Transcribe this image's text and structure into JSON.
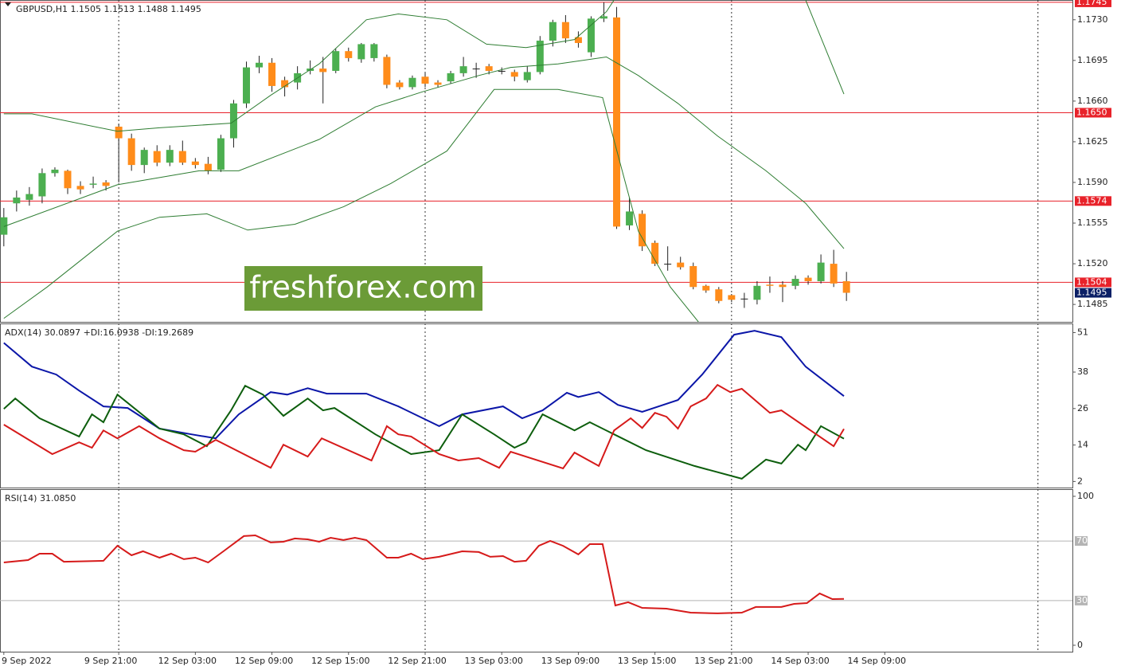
{
  "watermark": "freshforex.com",
  "chart_data": [
    {
      "type": "candlestick",
      "title": "GBPUSD,H1  1.1505 1.1513 1.1488 1.1495",
      "xlim": [
        -0.3,
        83.7
      ],
      "ylim": [
        1.147,
        1.1747
      ],
      "xticks": [
        {
          "value": 0,
          "label": "9 Sep 2022"
        },
        {
          "value": 9,
          "label": "9 Sep 21:00"
        },
        {
          "value": 15,
          "label": "12 Sep 03:00"
        },
        {
          "value": 21,
          "label": "12 Sep 09:00"
        },
        {
          "value": 27,
          "label": "12 Sep 15:00"
        },
        {
          "value": 33,
          "label": "12 Sep 21:00"
        },
        {
          "value": 39,
          "label": "13 Sep 03:00"
        },
        {
          "value": 45,
          "label": "13 Sep 09:00"
        },
        {
          "value": 51,
          "label": "13 Sep 15:00"
        },
        {
          "value": 57,
          "label": "13 Sep 21:00"
        },
        {
          "value": 63,
          "label": "14 Sep 03:00"
        },
        {
          "value": 69,
          "label": "14 Sep 09:00"
        }
      ],
      "xgrid": [
        9,
        33,
        57,
        81
      ],
      "yticks": [
        {
          "value": 1.1485,
          "label": "1.1485"
        },
        {
          "value": 1.152,
          "label": "1.1520"
        },
        {
          "value": 1.1555,
          "label": "1.1555"
        },
        {
          "value": 1.159,
          "label": "1.1590"
        },
        {
          "value": 1.1625,
          "label": "1.1625"
        },
        {
          "value": 1.166,
          "label": "1.1660"
        },
        {
          "value": 1.1695,
          "label": "1.1695"
        },
        {
          "value": 1.173,
          "label": "1.1730"
        }
      ],
      "up_color": "#4caf50",
      "down_color": "#ff8c1a",
      "open": [
        1.1545,
        1.1572,
        1.1575,
        1.1578,
        1.1598,
        1.16,
        1.1587,
        1.1588,
        1.159,
        1.1638,
        1.1628,
        1.1605,
        1.1617,
        1.1607,
        1.1617,
        1.1608,
        1.1606,
        1.1601,
        1.1628,
        1.1658,
        1.1689,
        1.1693,
        1.1678,
        1.1676,
        1.1686,
        1.1688,
        1.1686,
        1.1703,
        1.1696,
        1.1697,
        1.1698,
        1.1676,
        1.1672,
        1.1681,
        1.1676,
        1.1677,
        1.1684,
        1.1688,
        1.169,
        1.1686,
        1.1685,
        1.1678,
        1.1685,
        1.1712,
        1.1728,
        1.1715,
        1.1702,
        1.1731,
        1.1732,
        1.1553,
        1.1563,
        1.1538,
        1.152,
        1.1521,
        1.1518,
        1.1501,
        1.1498,
        1.1493,
        1.149,
        1.1489,
        1.1502,
        1.1502,
        1.1501,
        1.1508,
        1.1505,
        1.152,
        1.1505
      ],
      "high": [
        1.1568,
        1.1583,
        1.1586,
        1.1602,
        1.1603,
        1.1601,
        1.1591,
        1.1595,
        1.1592,
        1.164,
        1.1632,
        1.162,
        1.1622,
        1.1622,
        1.1626,
        1.1611,
        1.1612,
        1.1631,
        1.1661,
        1.1694,
        1.1699,
        1.1697,
        1.1681,
        1.169,
        1.1695,
        1.1698,
        1.1705,
        1.1706,
        1.171,
        1.171,
        1.17,
        1.1678,
        1.1682,
        1.1684,
        1.1678,
        1.1686,
        1.1698,
        1.1693,
        1.1692,
        1.1689,
        1.1687,
        1.169,
        1.1716,
        1.173,
        1.1734,
        1.172,
        1.1733,
        1.1745,
        1.1741,
        1.1577,
        1.1566,
        1.154,
        1.1535,
        1.1526,
        1.1521,
        1.1502,
        1.15,
        1.1494,
        1.1495,
        1.1505,
        1.1509,
        1.1505,
        1.151,
        1.151,
        1.1528,
        1.1532,
        1.1513
      ],
      "low": [
        1.1535,
        1.1565,
        1.157,
        1.1572,
        1.1595,
        1.158,
        1.158,
        1.1585,
        1.1583,
        1.159,
        1.16,
        1.1598,
        1.1604,
        1.1604,
        1.1605,
        1.1602,
        1.1597,
        1.1599,
        1.162,
        1.1654,
        1.1684,
        1.1668,
        1.1664,
        1.167,
        1.1683,
        1.1658,
        1.1684,
        1.1694,
        1.1693,
        1.1694,
        1.1671,
        1.167,
        1.167,
        1.1672,
        1.1672,
        1.1675,
        1.1681,
        1.168,
        1.1683,
        1.1683,
        1.1677,
        1.1676,
        1.1683,
        1.1707,
        1.171,
        1.1706,
        1.1698,
        1.1728,
        1.155,
        1.1549,
        1.1531,
        1.1518,
        1.1514,
        1.1515,
        1.1498,
        1.1495,
        1.1486,
        1.1487,
        1.1482,
        1.1485,
        1.1495,
        1.1487,
        1.1498,
        1.1502,
        1.1503,
        1.15,
        1.1488
      ],
      "close": [
        1.156,
        1.1577,
        1.158,
        1.1598,
        1.1601,
        1.1585,
        1.1584,
        1.1589,
        1.1587,
        1.1628,
        1.1605,
        1.1618,
        1.1607,
        1.1618,
        1.1607,
        1.1605,
        1.16,
        1.1628,
        1.1658,
        1.1689,
        1.1693,
        1.1673,
        1.1672,
        1.1684,
        1.1688,
        1.1685,
        1.1703,
        1.1697,
        1.1709,
        1.1709,
        1.1674,
        1.1672,
        1.168,
        1.1675,
        1.1674,
        1.1684,
        1.169,
        1.1688,
        1.1686,
        1.1686,
        1.1681,
        1.1685,
        1.1712,
        1.1728,
        1.1714,
        1.171,
        1.1731,
        1.1733,
        1.1552,
        1.1565,
        1.1535,
        1.152,
        1.152,
        1.1517,
        1.15,
        1.1497,
        1.1488,
        1.1489,
        1.149,
        1.1501,
        1.1501,
        1.15,
        1.1507,
        1.1505,
        1.1521,
        1.1503,
        1.1495
      ],
      "series": [
        {
          "color": "#2e7d32",
          "x": [
            0,
            2.2,
            8.9,
            12.2,
            17.8,
            20.9,
            24.7,
            28.4,
            30.9,
            34.7,
            37.8,
            40.9,
            44.7,
            47.2,
            47.8,
            55,
            62.8,
            65.8
          ],
          "values": [
            1.1649,
            1.1649,
            1.1634,
            1.1637,
            1.1641,
            1.1665,
            1.1692,
            1.173,
            1.1735,
            1.173,
            1.1709,
            1.1706,
            1.1713,
            1.1737,
            1.1747,
            null,
            1.1747,
            1.1666
          ]
        },
        {
          "color": "#2e7d32",
          "x": [
            0,
            8.9,
            15.3,
            18.4,
            24.7,
            29.1,
            32.8,
            37.2,
            39.7,
            43.4,
            47.2,
            49.7,
            52.8,
            55.9,
            59.7,
            62.8,
            65.8
          ],
          "values": [
            1.1552,
            1.1588,
            1.16,
            1.16,
            1.1627,
            1.1655,
            1.1668,
            1.1682,
            1.1689,
            1.1692,
            1.1698,
            1.1682,
            1.1658,
            1.163,
            1.16,
            1.1572,
            1.1533
          ]
        },
        {
          "color": "#2e7d32",
          "x": [
            0,
            3.4,
            8.9,
            12.2,
            15.9,
            19.1,
            22.8,
            26.6,
            30.3,
            34.7,
            38.4,
            43.4,
            46.9,
            49.7,
            52.2,
            54.4
          ],
          "values": [
            1.1473,
            1.15,
            1.1548,
            1.156,
            1.1563,
            1.1549,
            1.1554,
            1.1569,
            1.1589,
            1.1617,
            1.167,
            1.167,
            1.1663,
            1.1548,
            1.15,
            1.147
          ]
        }
      ],
      "levels": [
        {
          "value": 1.1745,
          "label": "1.1745"
        },
        {
          "value": 1.165,
          "label": "1.1650"
        },
        {
          "value": 1.1574,
          "label": "1.1574"
        },
        {
          "value": 1.1504,
          "label": "1.1504"
        }
      ],
      "level_color": "#e8222a",
      "last_price": 1.1495,
      "last_price_color": "#0a1f66"
    },
    {
      "type": "line",
      "title": "ADX(14) 30.0897 +DI:16.0938 -DI:19.2689",
      "xlim": [
        -0.3,
        83.7
      ],
      "ylim": [
        0,
        54
      ],
      "yticks": [
        2,
        14,
        26,
        38,
        51
      ],
      "series": [
        {
          "color": "#0b16a8",
          "x": [
            0,
            2.2,
            4.1,
            5.9,
            7.8,
            9.7,
            12.2,
            14.7,
            16.6,
            18.4,
            20.9,
            22.2,
            23.8,
            25.3,
            28.4,
            30.9,
            34.1,
            35.9,
            39.1,
            40.6,
            42.2,
            44.1,
            45.0,
            46.6,
            48.1,
            50.0,
            52.8,
            54.7,
            57.2,
            58.8,
            60.9,
            62.8,
            65.8
          ],
          "values": [
            47.6,
            39.8,
            37.2,
            31.9,
            26.7,
            26.2,
            19.4,
            17.5,
            16.2,
            24.1,
            31.4,
            30.6,
            32.7,
            30.9,
            30.9,
            26.7,
            20.2,
            24.1,
            26.7,
            22.8,
            25.4,
            31.2,
            29.8,
            31.4,
            27.2,
            24.9,
            28.8,
            37.2,
            50.3,
            51.6,
            49.5,
            39.8,
            30.1
          ]
        },
        {
          "color": "#0d5e0d",
          "x": [
            0,
            0.9,
            2.8,
            5.9,
            6.9,
            7.8,
            8.9,
            12.2,
            14.1,
            15.9,
            17.8,
            18.9,
            20.3,
            21.9,
            23.8,
            25.0,
            25.9,
            29.1,
            31.9,
            34.1,
            35.9,
            38.4,
            40.0,
            40.9,
            42.2,
            44.7,
            45.9,
            47.8,
            50.3,
            54.1,
            57.8,
            59.7,
            60.9,
            62.2,
            62.8,
            64.0,
            65.8
          ],
          "values": [
            25.9,
            29.3,
            22.8,
            16.8,
            24.1,
            21.5,
            30.6,
            19.4,
            17.5,
            13.6,
            25.4,
            33.5,
            30.6,
            23.6,
            29.3,
            25.4,
            26.2,
            17.5,
            11.0,
            12.3,
            24.1,
            17.5,
            13.1,
            14.9,
            24.1,
            18.8,
            21.5,
            17.5,
            12.3,
            7.1,
            2.9,
            9.2,
            7.9,
            14.1,
            12.3,
            20.2,
            16.1
          ]
        },
        {
          "color": "#d61a1a",
          "x": [
            0,
            3.8,
            5.9,
            6.9,
            7.8,
            8.9,
            10.6,
            12.2,
            14.1,
            15.0,
            16.6,
            20.9,
            21.9,
            23.8,
            24.9,
            28.8,
            30.0,
            30.9,
            31.9,
            34.1,
            35.6,
            37.2,
            38.8,
            39.7,
            43.8,
            44.7,
            46.6,
            47.8,
            49.1,
            50.0,
            51.0,
            51.9,
            52.8,
            53.8,
            55.0,
            55.9,
            56.9,
            57.8,
            60.0,
            60.9,
            65.0,
            65.8
          ],
          "values": [
            20.7,
            11.0,
            14.9,
            13.1,
            18.8,
            16.2,
            20.2,
            16.2,
            12.3,
            11.8,
            15.7,
            6.5,
            14.1,
            10.2,
            16.2,
            8.9,
            20.2,
            17.5,
            16.8,
            11.0,
            8.9,
            9.7,
            6.5,
            11.8,
            6.3,
            11.5,
            7.1,
            18.8,
            22.8,
            19.6,
            24.6,
            23.3,
            19.4,
            26.7,
            29.3,
            33.8,
            31.4,
            32.5,
            24.6,
            25.4,
            13.6,
            19.3
          ]
        }
      ]
    },
    {
      "type": "line",
      "title": "RSI(14) 31.0850",
      "xlim": [
        -0.3,
        83.7
      ],
      "ylim": [
        -4.3,
        104.8
      ],
      "yticks": [
        0,
        100
      ],
      "levels": [
        30,
        70
      ],
      "level_color": "#b4b4b4",
      "series": [
        {
          "color": "#d61a1a",
          "x": [
            0,
            1.9,
            2.8,
            3.8,
            4.7,
            7.8,
            8.9,
            10.0,
            10.9,
            12.2,
            13.1,
            14.1,
            15.0,
            16.0,
            17.2,
            18.8,
            19.7,
            20.9,
            21.9,
            22.8,
            23.8,
            24.7,
            25.6,
            26.6,
            27.5,
            28.4,
            30.0,
            30.9,
            31.9,
            32.8,
            34.1,
            35.9,
            37.2,
            38.1,
            39.1,
            40.0,
            40.9,
            41.9,
            42.8,
            43.8,
            45.0,
            45.9,
            46.9,
            47.9,
            48.9,
            50.0,
            51.9,
            53.8,
            55.9,
            57.8,
            58.9,
            60.9,
            61.9,
            62.9,
            63.9,
            64.9,
            65.8
          ],
          "values": [
            55.6,
            57.2,
            61.5,
            61.5,
            56.1,
            56.7,
            66.8,
            60.4,
            63.1,
            58.8,
            61.5,
            57.8,
            58.8,
            55.6,
            63.1,
            73.3,
            73.8,
            69.0,
            69.5,
            71.7,
            71.1,
            69.5,
            72.2,
            70.6,
            72.2,
            70.6,
            58.8,
            58.8,
            61.5,
            57.8,
            59.4,
            63.1,
            62.6,
            59.4,
            59.9,
            56.1,
            56.7,
            66.8,
            70.1,
            66.8,
            61.0,
            67.9,
            67.9,
            26.7,
            28.9,
            25.1,
            24.6,
            21.9,
            21.4,
            21.9,
            25.7,
            25.7,
            27.8,
            28.3,
            34.8,
            31.0,
            31.1
          ]
        }
      ]
    }
  ]
}
